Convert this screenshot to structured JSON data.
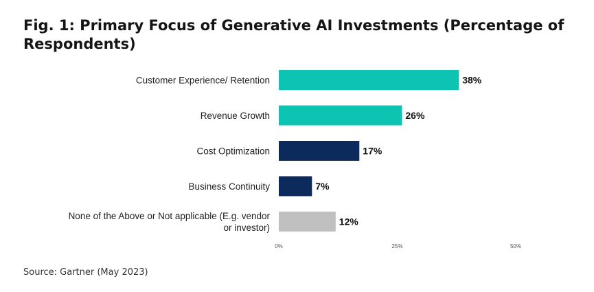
{
  "figure": {
    "title": "Fig. 1: Primary Focus of Generative AI Investments (Percentage of Respondents)",
    "source": "Source: Gartner (May 2023)"
  },
  "chart_data": {
    "type": "bar",
    "orientation": "horizontal",
    "categories": [
      "Customer Experience/ Retention",
      "Revenue Growth",
      "Cost Optimization",
      "Business Continuity",
      "None of the Above or Not applicable (E.g. vendor or investor)"
    ],
    "category_lines": [
      [
        "Customer Experience/ Retention"
      ],
      [
        "Revenue Growth"
      ],
      [
        "Cost Optimization"
      ],
      [
        "Business Continuity"
      ],
      [
        "None of the Above or Not applicable (E.g. vendor",
        "or investor)"
      ]
    ],
    "values": [
      38,
      26,
      17,
      7,
      12
    ],
    "data_labels": [
      "38%",
      "26%",
      "17%",
      "7%",
      "12%"
    ],
    "colors": [
      "#0cc4b1",
      "#0cc4b1",
      "#0d2a5c",
      "#0d2a5c",
      "#c0c0c0"
    ],
    "xlim": [
      0,
      50
    ],
    "xticks": [
      0,
      25,
      50
    ],
    "xtick_labels": [
      "0%",
      "25%",
      "50%"
    ],
    "grid": false,
    "legend": "none"
  }
}
